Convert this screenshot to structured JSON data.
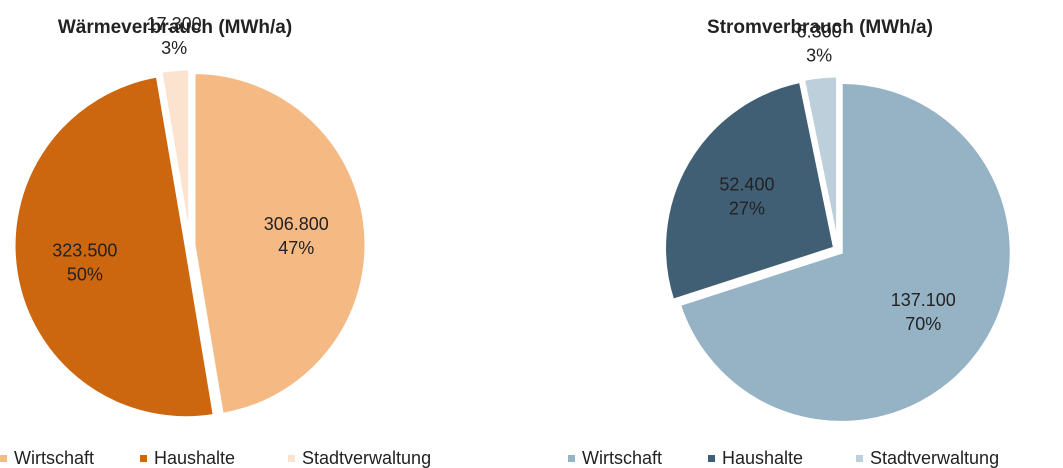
{
  "chart_data": [
    {
      "type": "pie",
      "title": "Wärmeverbrauch (MWh/a)",
      "categories": [
        "Wirtschaft",
        "Haushalte",
        "Stadtverwaltung"
      ],
      "values": [
        306800,
        323500,
        17300
      ],
      "value_labels": [
        "306.800",
        "323.500",
        "17.300"
      ],
      "percent_labels": [
        "47%",
        "50%",
        "3%"
      ],
      "colors": [
        "#f5b984",
        "#cc660f",
        "#fbe3cf"
      ]
    },
    {
      "type": "pie",
      "title": "Stromverbrauch (MWh/a)",
      "categories": [
        "Wirtschaft",
        "Haushalte",
        "Stadtverwaltung"
      ],
      "values": [
        137100,
        52400,
        6300
      ],
      "value_labels": [
        "137.100",
        "52.400",
        "6.300"
      ],
      "percent_labels": [
        "70%",
        "27%",
        "3%"
      ],
      "colors": [
        "#95b3c5",
        "#415f74",
        "#bccfdb"
      ]
    }
  ]
}
